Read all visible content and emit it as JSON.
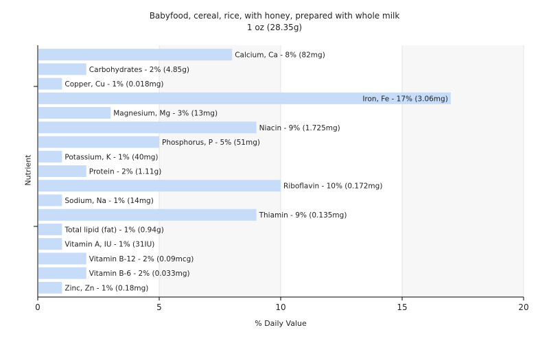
{
  "chart_data": {
    "type": "bar",
    "orientation": "horizontal",
    "title": "Babyfood, cereal, rice, with honey, prepared with whole milk",
    "subtitle": "1 oz (28.35g)",
    "xlabel": "% Daily Value",
    "ylabel": "Nutrient",
    "xlim": [
      0,
      20
    ],
    "xticks": [
      0,
      5,
      10,
      15,
      20
    ],
    "grid": true,
    "bar_color": "#c6dcf8",
    "categories": [
      "Calcium, Ca",
      "Carbohydrates",
      "Copper, Cu",
      "Iron, Fe",
      "Magnesium, Mg",
      "Niacin",
      "Phosphorus, P",
      "Potassium, K",
      "Protein",
      "Riboflavin",
      "Sodium, Na",
      "Thiamin",
      "Total lipid (fat)",
      "Vitamin A, IU",
      "Vitamin B-12",
      "Vitamin B-6",
      "Zinc, Zn"
    ],
    "values": [
      8,
      2,
      1,
      17,
      3,
      9,
      5,
      1,
      2,
      10,
      1,
      9,
      1,
      1,
      2,
      2,
      1
    ],
    "labels": [
      "Calcium, Ca - 8% (82mg)",
      "Carbohydrates - 2% (4.85g)",
      "Copper, Cu - 1% (0.018mg)",
      "Iron, Fe - 17% (3.06mg)",
      "Magnesium, Mg - 3% (13mg)",
      "Niacin - 9% (1.725mg)",
      "Phosphorus, P - 5% (51mg)",
      "Potassium, K - 1% (40mg)",
      "Protein - 2% (1.11g)",
      "Riboflavin - 10% (0.172mg)",
      "Sodium, Na - 1% (14mg)",
      "Thiamin - 9% (0.135mg)",
      "Total lipid (fat) - 1% (0.94g)",
      "Vitamin A, IU - 1% (31IU)",
      "Vitamin B-12 - 2% (0.09mcg)",
      "Vitamin B-6 - 2% (0.033mg)",
      "Zinc, Zn - 1% (0.18mg)"
    ]
  }
}
